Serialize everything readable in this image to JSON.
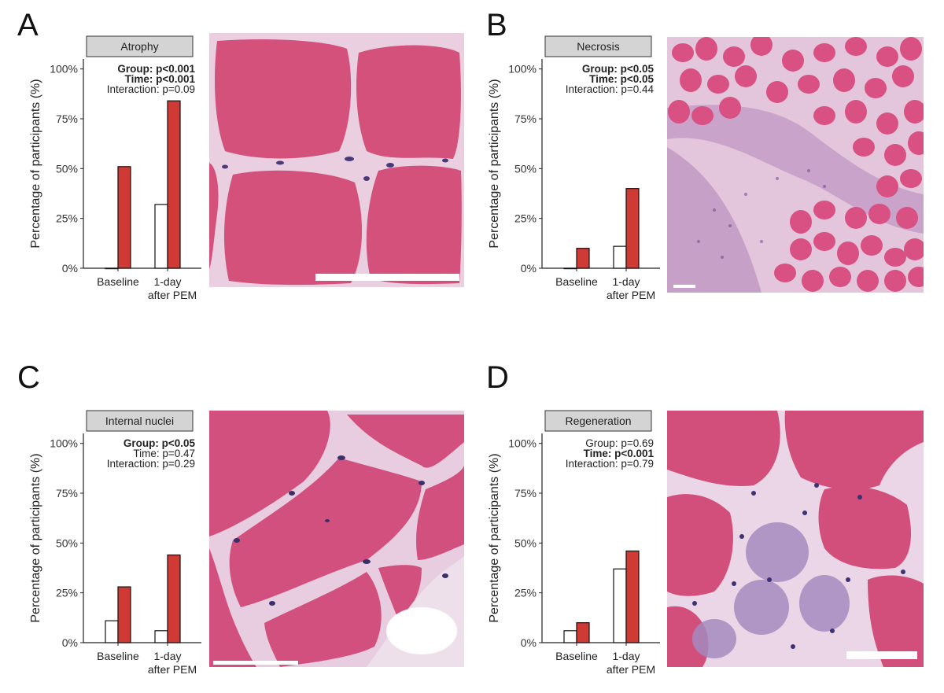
{
  "colors": {
    "gray_bar": "#ffffff",
    "red_bar": "#d03a35",
    "strip": "#d4d4d4",
    "tissue": "#d04a76"
  },
  "chart_data": [
    {
      "panel": "A",
      "type": "bar",
      "title": "Atrophy",
      "ylabel": "Percentage of participants (%)",
      "ylim": [
        0,
        100
      ],
      "yticks": [
        "0%",
        "25%",
        "50%",
        "75%",
        "100%"
      ],
      "categories": [
        "Baseline",
        "1-day after PEM"
      ],
      "category_lines": [
        [
          "Baseline"
        ],
        [
          "1-day",
          "after PEM"
        ]
      ],
      "series": [
        {
          "values": [
            0,
            32
          ],
          "color": "#ffffff"
        },
        {
          "values": [
            51,
            84
          ],
          "color": "#d03a35"
        }
      ],
      "stats": [
        {
          "text": "Group: p<0.001",
          "bold": true
        },
        {
          "text": "Time: p<0.001",
          "bold": true
        },
        {
          "text": "Interaction: p=0.09",
          "bold": false
        }
      ]
    },
    {
      "panel": "B",
      "type": "bar",
      "title": "Necrosis",
      "ylabel": "Percentage of participants (%)",
      "ylim": [
        0,
        100
      ],
      "yticks": [
        "0%",
        "25%",
        "50%",
        "75%",
        "100%"
      ],
      "categories": [
        "Baseline",
        "1-day after PEM"
      ],
      "category_lines": [
        [
          "Baseline"
        ],
        [
          "1-day",
          "after PEM"
        ]
      ],
      "series": [
        {
          "values": [
            0,
            11
          ],
          "color": "#ffffff"
        },
        {
          "values": [
            10,
            40
          ],
          "color": "#d03a35"
        }
      ],
      "stats": [
        {
          "text": "Group: p<0.05",
          "bold": true
        },
        {
          "text": "Time: p<0.05",
          "bold": true
        },
        {
          "text": "Interaction: p=0.44",
          "bold": false
        }
      ]
    },
    {
      "panel": "C",
      "type": "bar",
      "title": "Internal nuclei",
      "ylabel": "Percentage of participants (%)",
      "ylim": [
        0,
        100
      ],
      "yticks": [
        "0%",
        "25%",
        "50%",
        "75%",
        "100%"
      ],
      "categories": [
        "Baseline",
        "1-day after PEM"
      ],
      "category_lines": [
        [
          "Baseline"
        ],
        [
          "1-day",
          "after PEM"
        ]
      ],
      "series": [
        {
          "values": [
            11,
            6
          ],
          "color": "#ffffff"
        },
        {
          "values": [
            28,
            44
          ],
          "color": "#d03a35"
        }
      ],
      "stats": [
        {
          "text": "Group: p<0.05",
          "bold": true
        },
        {
          "text": "Time: p=0.47",
          "bold": false
        },
        {
          "text": "Interaction: p=0.29",
          "bold": false
        }
      ]
    },
    {
      "panel": "D",
      "type": "bar",
      "title": "Regeneration",
      "ylabel": "Percentage of participants (%)",
      "ylim": [
        0,
        100
      ],
      "yticks": [
        "0%",
        "25%",
        "50%",
        "75%",
        "100%"
      ],
      "categories": [
        "Baseline",
        "1-day after PEM"
      ],
      "category_lines": [
        [
          "Baseline"
        ],
        [
          "1-day",
          "after PEM"
        ]
      ],
      "series": [
        {
          "values": [
            6,
            37
          ],
          "color": "#ffffff"
        },
        {
          "values": [
            10,
            46
          ],
          "color": "#d03a35"
        }
      ],
      "stats": [
        {
          "text": "Group: p=0.69",
          "bold": false
        },
        {
          "text": "Time: p<0.001",
          "bold": true
        },
        {
          "text": "Interaction: p=0.79",
          "bold": false
        }
      ]
    }
  ],
  "panel_letters": [
    "A",
    "B",
    "C",
    "D"
  ]
}
